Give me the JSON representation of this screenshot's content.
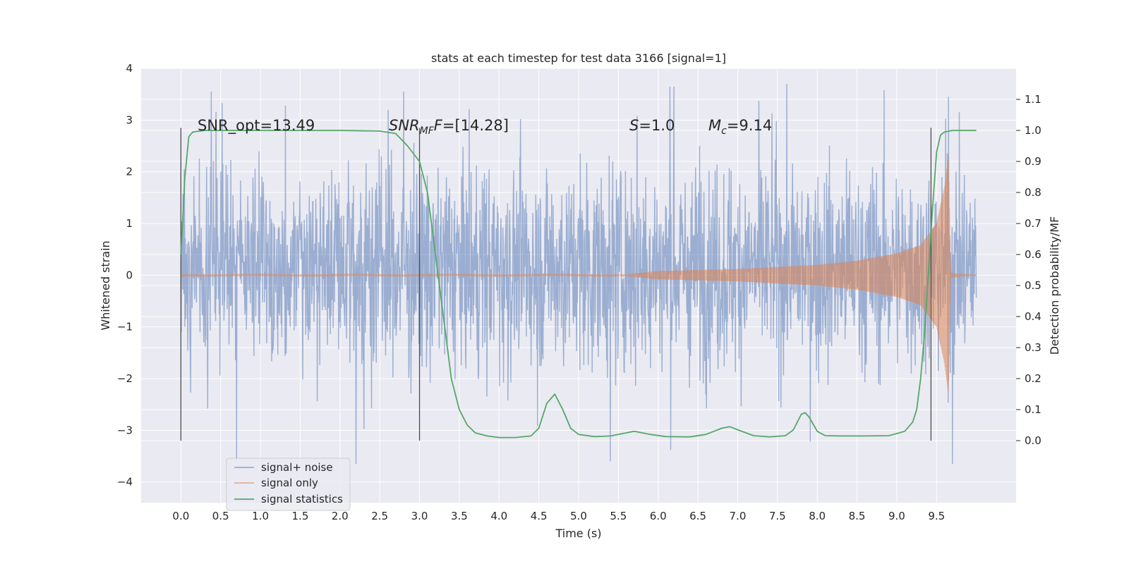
{
  "chart_data": {
    "type": "line",
    "title": "stats at each timestep for test data 3166 [signal=1]",
    "xlabel": "Time (s)",
    "ylabel": "Whitened strain",
    "ylabel_right": "Detection probability/MF",
    "xlim": [
      -0.5,
      10.5
    ],
    "ylim": [
      -4.4,
      4.0
    ],
    "ylim_right": [
      -0.2,
      1.2
    ],
    "x_ticks": [
      0.0,
      0.5,
      1.0,
      1.5,
      2.0,
      2.5,
      3.0,
      3.5,
      4.0,
      4.5,
      5.0,
      5.5,
      6.0,
      6.5,
      7.0,
      7.5,
      8.0,
      8.5,
      9.0,
      9.5
    ],
    "x_tick_labels": [
      "0.0",
      "0.5",
      "1.0",
      "1.5",
      "2.0",
      "2.5",
      "3.0",
      "3.5",
      "4.0",
      "4.5",
      "5.0",
      "5.5",
      "6.0",
      "6.5",
      "7.0",
      "7.5",
      "8.0",
      "8.5",
      "9.0",
      "9.5"
    ],
    "y_ticks": [
      -4,
      -3,
      -2,
      -1,
      0,
      1,
      2,
      3,
      4
    ],
    "y_tick_labels": [
      "−4",
      "−3",
      "−2",
      "−1",
      "0",
      "1",
      "2",
      "3",
      "4"
    ],
    "y_right_ticks": [
      0.0,
      0.1,
      0.2,
      0.3,
      0.4,
      0.5,
      0.6,
      0.7,
      0.8,
      0.9,
      1.0,
      1.1
    ],
    "y_right_tick_labels": [
      "0.0",
      "0.1",
      "0.2",
      "0.3",
      "0.4",
      "0.5",
      "0.6",
      "0.7",
      "0.8",
      "0.9",
      "1.0",
      "1.1"
    ],
    "grid": true,
    "legend_position": "lower-left",
    "series": [
      {
        "name": "signal+ noise",
        "color": "#4c72b0",
        "axis": "left",
        "x_range": [
          0.0,
          10.0
        ],
        "typical_range": [
          -1.8,
          2.2
        ],
        "extremes": [
          [
            0.38,
            3.55
          ],
          [
            2.8,
            3.55
          ],
          [
            6.15,
            3.65
          ],
          [
            6.2,
            3.65
          ],
          [
            9.65,
            3.45
          ],
          [
            0.7,
            -3.6
          ],
          [
            2.2,
            -3.65
          ],
          [
            5.4,
            -3.6
          ],
          [
            9.7,
            -3.65
          ]
        ]
      },
      {
        "name": "signal only",
        "color": "#dd8452",
        "axis": "left",
        "x_range": [
          0.0,
          10.0
        ],
        "chirp_peak_time": 9.65,
        "chirp_peak_amplitude": 2.3,
        "envelope": [
          [
            5.5,
            0.0
          ],
          [
            6.0,
            0.08
          ],
          [
            7.0,
            0.12
          ],
          [
            8.0,
            0.2
          ],
          [
            8.5,
            0.28
          ],
          [
            9.0,
            0.42
          ],
          [
            9.3,
            0.58
          ],
          [
            9.5,
            1.0
          ],
          [
            9.6,
            1.7
          ],
          [
            9.65,
            2.3
          ],
          [
            9.68,
            0.0
          ]
        ]
      },
      {
        "name": "signal statistics",
        "color": "#55a868",
        "axis": "right",
        "x": [
          0.0,
          0.05,
          0.1,
          0.15,
          0.3,
          0.5,
          1.0,
          2.0,
          2.5,
          2.7,
          2.85,
          3.0,
          3.1,
          3.2,
          3.3,
          3.4,
          3.5,
          3.6,
          3.7,
          3.85,
          4.0,
          4.2,
          4.4,
          4.5,
          4.6,
          4.7,
          4.8,
          4.9,
          5.0,
          5.2,
          5.4,
          5.6,
          5.7,
          5.9,
          6.1,
          6.4,
          6.6,
          6.8,
          6.9,
          7.0,
          7.2,
          7.4,
          7.6,
          7.7,
          7.8,
          7.85,
          7.9,
          8.0,
          8.1,
          8.3,
          8.6,
          8.9,
          9.1,
          9.2,
          9.25,
          9.3,
          9.35,
          9.4,
          9.45,
          9.5,
          9.55,
          9.6,
          9.7,
          10.0
        ],
        "y": [
          0.6,
          0.85,
          0.98,
          0.995,
          1.0,
          1.0,
          1.0,
          1.0,
          0.998,
          0.99,
          0.95,
          0.9,
          0.8,
          0.6,
          0.4,
          0.2,
          0.1,
          0.05,
          0.025,
          0.015,
          0.01,
          0.01,
          0.015,
          0.04,
          0.12,
          0.15,
          0.1,
          0.04,
          0.02,
          0.013,
          0.015,
          0.025,
          0.03,
          0.02,
          0.013,
          0.012,
          0.02,
          0.04,
          0.045,
          0.035,
          0.016,
          0.012,
          0.016,
          0.035,
          0.085,
          0.09,
          0.075,
          0.03,
          0.016,
          0.015,
          0.015,
          0.016,
          0.03,
          0.06,
          0.1,
          0.2,
          0.35,
          0.55,
          0.75,
          0.93,
          0.985,
          0.995,
          1.0,
          1.0
        ]
      }
    ],
    "vertical_lines": [
      0.0,
      3.0,
      9.43
    ],
    "annotations": [
      {
        "text": "SNR_opt=13.49",
        "x": 0.2,
        "y": 3.0
      },
      {
        "text": "[14.28]",
        "prefix": "SNR",
        "sub": "MF",
        "suffix_italic": "F",
        "x": 2.6,
        "y": 3.0
      },
      {
        "text": "=1.0",
        "prefix": "S",
        "x": 5.6,
        "y": 3.0
      },
      {
        "text": "=9.14",
        "prefix": "M",
        "sub": "c",
        "x": 6.6,
        "y": 3.0
      }
    ]
  },
  "legend": {
    "items": [
      {
        "label": "signal+ noise",
        "color": "#4c72b0"
      },
      {
        "label": "signal only",
        "color": "#dd8452"
      },
      {
        "label": "signal statistics",
        "color": "#55a868"
      }
    ]
  }
}
